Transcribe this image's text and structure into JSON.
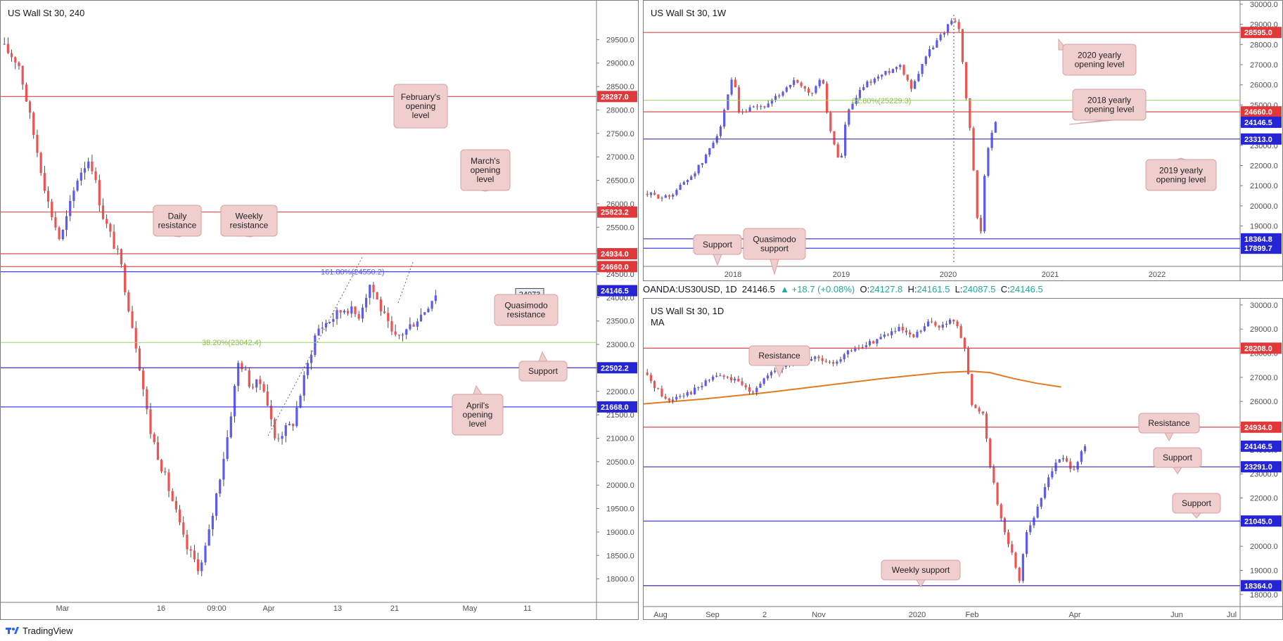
{
  "colors": {
    "bull": "#5b5bf0",
    "bear": "#ef5350",
    "red_line": "#e0494a",
    "blue_line": "#2b2be0",
    "green_line": "#9bd16a",
    "ma": "#e07b20",
    "callout_bg": "#f1cece",
    "callout_border": "#d4a2a2",
    "red_tag": "#e0383b",
    "blue_tag": "#2525d6"
  },
  "panels": [
    {
      "name": "h4",
      "title": "US Wall St 30, 240",
      "chart_data": {
        "type": "candlestick",
        "ylim": [
          17500,
          30300
        ],
        "yticks": [
          "29500.0",
          "29000.0",
          "28500.0",
          "28000.0",
          "27500.0",
          "27000.0",
          "26500.0",
          "26000.0",
          "25500.0",
          "25000.0",
          "24500.0",
          "24000.0",
          "23500.0",
          "23000.0",
          "22500.0",
          "22000.0",
          "21500.0",
          "21000.0",
          "20500.0",
          "20000.0",
          "19500.0",
          "19000.0",
          "18500.0",
          "18000.0"
        ],
        "xticks": [
          "Mar",
          "16",
          "09:00",
          "Apr",
          "13",
          "21",
          "May",
          "11"
        ],
        "path": [
          [
            0,
            29400
          ],
          [
            0.03,
            29000
          ],
          [
            0.05,
            27800
          ],
          [
            0.08,
            26000
          ],
          [
            0.1,
            25200
          ],
          [
            0.13,
            26600
          ],
          [
            0.15,
            27000
          ],
          [
            0.17,
            25800
          ],
          [
            0.2,
            24800
          ],
          [
            0.23,
            22800
          ],
          [
            0.25,
            21200
          ],
          [
            0.27,
            20400
          ],
          [
            0.29,
            19600
          ],
          [
            0.31,
            18700
          ],
          [
            0.335,
            18200
          ],
          [
            0.35,
            19000
          ],
          [
            0.38,
            21000
          ],
          [
            0.4,
            22700
          ],
          [
            0.42,
            22100
          ],
          [
            0.44,
            22200
          ],
          [
            0.46,
            21000
          ],
          [
            0.49,
            21300
          ],
          [
            0.51,
            22300
          ],
          [
            0.53,
            23300
          ],
          [
            0.55,
            23500
          ],
          [
            0.58,
            23800
          ],
          [
            0.6,
            23600
          ],
          [
            0.62,
            24300
          ],
          [
            0.64,
            23700
          ],
          [
            0.66,
            23100
          ],
          [
            0.68,
            23300
          ],
          [
            0.71,
            23700
          ],
          [
            0.73,
            24100
          ]
        ],
        "hlines": [
          {
            "value": 28287.0,
            "color": "red",
            "tag": "28287.0"
          },
          {
            "value": 25823.2,
            "color": "red",
            "tag": "25823.2"
          },
          {
            "value": 24934.0,
            "color": "red",
            "tag": "24934.0"
          },
          {
            "value": 24660.0,
            "color": "red",
            "tag": "24660.0"
          },
          {
            "value": 24550.2,
            "color": "blue_thin",
            "tag": null,
            "label": "161.80%(24550.2)"
          },
          {
            "value": 23042.4,
            "color": "green",
            "tag": null,
            "label": "38.20%(23042.4)"
          },
          {
            "value": 22502.2,
            "color": "purple",
            "tag": "22502.2"
          },
          {
            "value": 21668.0,
            "color": "blue",
            "tag": "21668.0"
          }
        ],
        "current_price": {
          "value": 24146.5,
          "tag": "24146.5"
        },
        "marker_box": "24073",
        "annotations": [
          {
            "text": "February's opening level",
            "lines": [
              "February's",
              "opening",
              "level"
            ]
          },
          {
            "text": "March's opening level",
            "lines": [
              "March's",
              "opening",
              "level"
            ]
          },
          {
            "text": "Daily resistance",
            "lines": [
              "Daily",
              "resistance"
            ]
          },
          {
            "text": "Weekly resistance",
            "lines": [
              "Weekly",
              "resistance"
            ]
          },
          {
            "text": "Quasimodo resistance",
            "lines": [
              "Quasimodo",
              "resistance"
            ]
          },
          {
            "text": "Support",
            "lines": [
              "Support"
            ]
          },
          {
            "text": "April's opening level",
            "lines": [
              "April's",
              "opening",
              "level"
            ]
          }
        ]
      }
    },
    {
      "name": "weekly",
      "title": "US Wall St 30, 1W",
      "chart_data": {
        "type": "candlestick",
        "ylim": [
          17000,
          30100
        ],
        "yticks": [
          "30000.0",
          "29000.0",
          "28000.0",
          "27000.0",
          "26000.0",
          "25000.0",
          "24000.0",
          "23000.0",
          "22000.0",
          "21000.0",
          "20000.0",
          "19000.0",
          "18000.0"
        ],
        "xticks": [
          "2018",
          "2019",
          "2020",
          "2021",
          "2022"
        ],
        "path": [
          [
            0,
            20600
          ],
          [
            0.04,
            20400
          ],
          [
            0.08,
            21500
          ],
          [
            0.1,
            22200
          ],
          [
            0.13,
            24000
          ],
          [
            0.15,
            26500
          ],
          [
            0.16,
            24500
          ],
          [
            0.18,
            24800
          ],
          [
            0.21,
            25000
          ],
          [
            0.25,
            26200
          ],
          [
            0.28,
            25500
          ],
          [
            0.3,
            26400
          ],
          [
            0.31,
            24000
          ],
          [
            0.33,
            22000
          ],
          [
            0.34,
            24500
          ],
          [
            0.37,
            26000
          ],
          [
            0.4,
            26500
          ],
          [
            0.43,
            27000
          ],
          [
            0.45,
            25800
          ],
          [
            0.47,
            27300
          ],
          [
            0.5,
            28500
          ],
          [
            0.52,
            29400
          ],
          [
            0.53,
            28600
          ],
          [
            0.54,
            25500
          ],
          [
            0.55,
            23000
          ],
          [
            0.56,
            19000
          ],
          [
            0.565,
            18500
          ],
          [
            0.57,
            21000
          ],
          [
            0.58,
            23500
          ],
          [
            0.59,
            24100
          ]
        ],
        "hlines": [
          {
            "value": 28595.0,
            "color": "red",
            "tag": "28595.0"
          },
          {
            "value": 25229.3,
            "color": "green",
            "tag": null,
            "label": "61.80%(25229.3)"
          },
          {
            "value": 24660.0,
            "color": "red",
            "tag": "24660.0"
          },
          {
            "value": 23313.0,
            "color": "purple",
            "tag": "23313.0"
          },
          {
            "value": 18364.8,
            "color": "blue",
            "tag": "18364.8"
          },
          {
            "value": 17899.7,
            "color": "blue",
            "tag": "17899.7"
          }
        ],
        "current_price": {
          "value": 24146.5,
          "tag": "24146.5"
        },
        "annotations": [
          {
            "text": "2020 yearly opening level",
            "lines": [
              "2020 yearly",
              "opening level"
            ]
          },
          {
            "text": "2018 yearly opening level",
            "lines": [
              "2018 yearly",
              "opening level"
            ]
          },
          {
            "text": "2019 yearly opening level",
            "lines": [
              "2019 yearly",
              "opening level"
            ]
          },
          {
            "text": "Support",
            "lines": [
              "Support"
            ]
          },
          {
            "text": "Quasimodo support",
            "lines": [
              "Quasimodo",
              "support"
            ]
          }
        ]
      }
    },
    {
      "name": "daily",
      "title": "US Wall St 30, 1D",
      "subtitle": "MA",
      "ohlc": {
        "symbol": "OANDA:US30USD, 1D",
        "last": "24146.5",
        "change": "▲ +18.7 (+0.08%)",
        "o_label": "O:",
        "o": "24127.8",
        "h_label": "H:",
        "h": "24161.5",
        "l_label": "L:",
        "l": "24087.5",
        "c_label": "C:",
        "c": "24146.5"
      },
      "chart_data": {
        "type": "candlestick",
        "ylim": [
          17500,
          30200
        ],
        "yticks": [
          "30000.0",
          "29000.0",
          "28000.0",
          "27000.0",
          "26000.0",
          "25000.0",
          "24000.0",
          "23000.0",
          "22000.0",
          "21000.0",
          "20000.0",
          "19000.0",
          "18000.0"
        ],
        "xticks": [
          "Aug",
          "Sep",
          "2",
          "Nov",
          "2020",
          "Feb",
          "Apr",
          "Jun",
          "Jul"
        ],
        "path": [
          [
            0,
            27200
          ],
          [
            0.02,
            26600
          ],
          [
            0.04,
            26000
          ],
          [
            0.06,
            26300
          ],
          [
            0.08,
            26400
          ],
          [
            0.1,
            26700
          ],
          [
            0.12,
            27100
          ],
          [
            0.15,
            26900
          ],
          [
            0.18,
            26400
          ],
          [
            0.2,
            26900
          ],
          [
            0.23,
            27400
          ],
          [
            0.26,
            27700
          ],
          [
            0.29,
            27800
          ],
          [
            0.31,
            27500
          ],
          [
            0.34,
            28000
          ],
          [
            0.37,
            28300
          ],
          [
            0.4,
            28700
          ],
          [
            0.43,
            29000
          ],
          [
            0.45,
            28600
          ],
          [
            0.48,
            29300
          ],
          [
            0.5,
            29100
          ],
          [
            0.52,
            29400
          ],
          [
            0.54,
            28200
          ],
          [
            0.55,
            25800
          ],
          [
            0.57,
            25500
          ],
          [
            0.58,
            23500
          ],
          [
            0.6,
            21000
          ],
          [
            0.62,
            19500
          ],
          [
            0.63,
            18600
          ],
          [
            0.64,
            20500
          ],
          [
            0.66,
            21500
          ],
          [
            0.68,
            23000
          ],
          [
            0.7,
            23700
          ],
          [
            0.72,
            23200
          ],
          [
            0.74,
            24100
          ]
        ],
        "ma_series": [
          [
            0.0,
            25900
          ],
          [
            0.1,
            26100
          ],
          [
            0.2,
            26350
          ],
          [
            0.3,
            26650
          ],
          [
            0.4,
            26950
          ],
          [
            0.5,
            27200
          ],
          [
            0.55,
            27250
          ],
          [
            0.58,
            27200
          ],
          [
            0.62,
            26950
          ],
          [
            0.66,
            26750
          ],
          [
            0.7,
            26600
          ]
        ],
        "hlines": [
          {
            "value": 28208.0,
            "color": "red",
            "tag": "28208.0"
          },
          {
            "value": 24934.0,
            "color": "red",
            "tag": "24934.0"
          },
          {
            "value": 23291.0,
            "color": "purple",
            "tag": "23291.0"
          },
          {
            "value": 21045.0,
            "color": "blue",
            "tag": "21045.0"
          },
          {
            "value": 18364.0,
            "color": "purple",
            "tag": "18364.0"
          }
        ],
        "current_price": {
          "value": 24146.5,
          "tag": "24146.5"
        },
        "annotations": [
          {
            "text": "Resistance",
            "lines": [
              "Resistance"
            ]
          },
          {
            "text": "Resistance",
            "lines": [
              "Resistance"
            ]
          },
          {
            "text": "Support",
            "lines": [
              "Support"
            ]
          },
          {
            "text": "Support",
            "lines": [
              "Support"
            ]
          },
          {
            "text": "Weekly support",
            "lines": [
              "Weekly support"
            ]
          }
        ]
      }
    }
  ],
  "footer": {
    "brand": "TradingView"
  }
}
